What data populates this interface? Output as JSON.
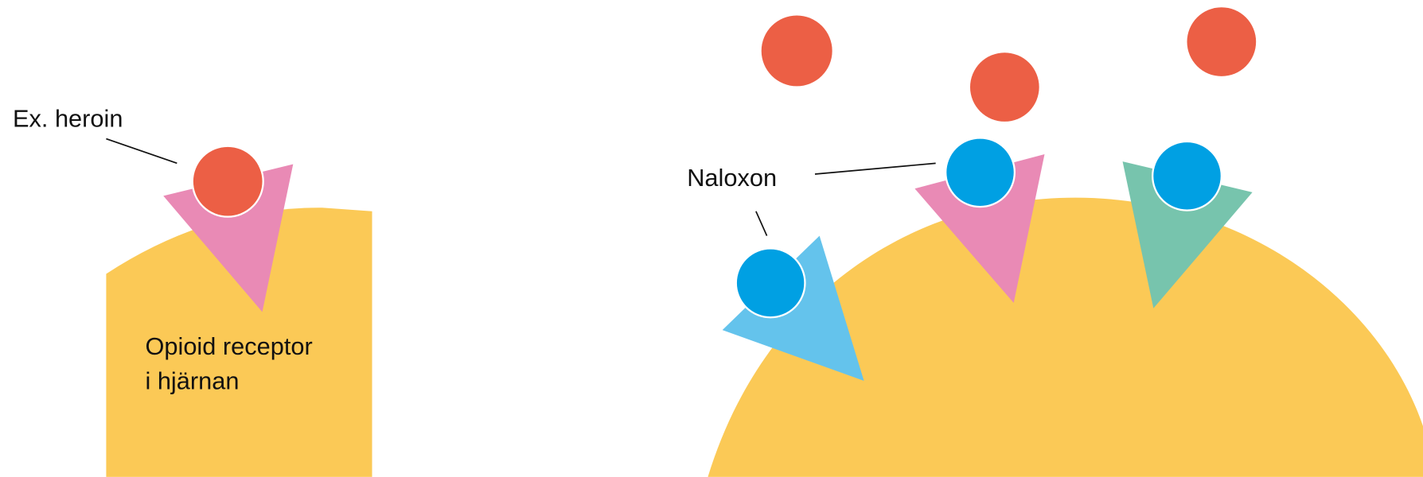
{
  "labels": {
    "heroin": "Ex. heroin",
    "receptor": [
      "Opioid receptor",
      "i hjärnan"
    ],
    "naloxone": "Naloxon"
  }
}
